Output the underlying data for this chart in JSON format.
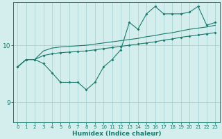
{
  "xlabel": "Humidex (Indice chaleur)",
  "bg_color": "#d4eeee",
  "grid_color": "#aad4d4",
  "line_color": "#1a7a6e",
  "xlim": [
    -0.5,
    23.5
  ],
  "ylim": [
    8.65,
    10.75
  ],
  "yticks": [
    9,
    10
  ],
  "xticks": [
    0,
    1,
    2,
    3,
    4,
    5,
    6,
    7,
    8,
    9,
    10,
    11,
    12,
    13,
    14,
    15,
    16,
    17,
    18,
    19,
    20,
    21,
    22,
    23
  ],
  "line1_x": [
    0,
    1,
    2,
    3,
    4,
    5,
    6,
    7,
    8,
    9,
    10,
    11,
    12,
    13,
    14,
    15,
    16,
    17,
    18,
    19,
    20,
    21,
    22,
    23
  ],
  "line1_y": [
    9.62,
    9.75,
    9.75,
    9.68,
    9.52,
    9.35,
    9.35,
    9.35,
    9.22,
    9.35,
    9.62,
    9.75,
    9.92,
    10.4,
    10.28,
    10.55,
    10.68,
    10.55,
    10.55,
    10.55,
    10.58,
    10.68,
    10.35,
    10.4
  ],
  "line2_x": [
    0,
    1,
    2,
    3,
    4,
    5,
    6,
    7,
    8,
    9,
    10,
    11,
    12,
    13,
    14,
    15,
    16,
    17,
    18,
    19,
    20,
    21,
    22,
    23
  ],
  "line2_y": [
    9.62,
    9.75,
    9.75,
    9.82,
    9.85,
    9.87,
    9.88,
    9.89,
    9.9,
    9.92,
    9.94,
    9.96,
    9.98,
    10.0,
    10.02,
    10.04,
    10.06,
    10.09,
    10.11,
    10.14,
    10.16,
    10.18,
    10.2,
    10.22
  ],
  "line3_x": [
    0,
    1,
    2,
    3,
    4,
    5,
    6,
    7,
    8,
    9,
    10,
    11,
    12,
    13,
    14,
    15,
    16,
    17,
    18,
    19,
    20,
    21,
    22,
    23
  ],
  "line3_y": [
    9.62,
    9.75,
    9.75,
    9.9,
    9.95,
    9.97,
    9.98,
    9.99,
    10.0,
    10.02,
    10.04,
    10.06,
    10.08,
    10.1,
    10.12,
    10.15,
    10.17,
    10.2,
    10.22,
    10.25,
    10.28,
    10.3,
    10.32,
    10.35
  ]
}
